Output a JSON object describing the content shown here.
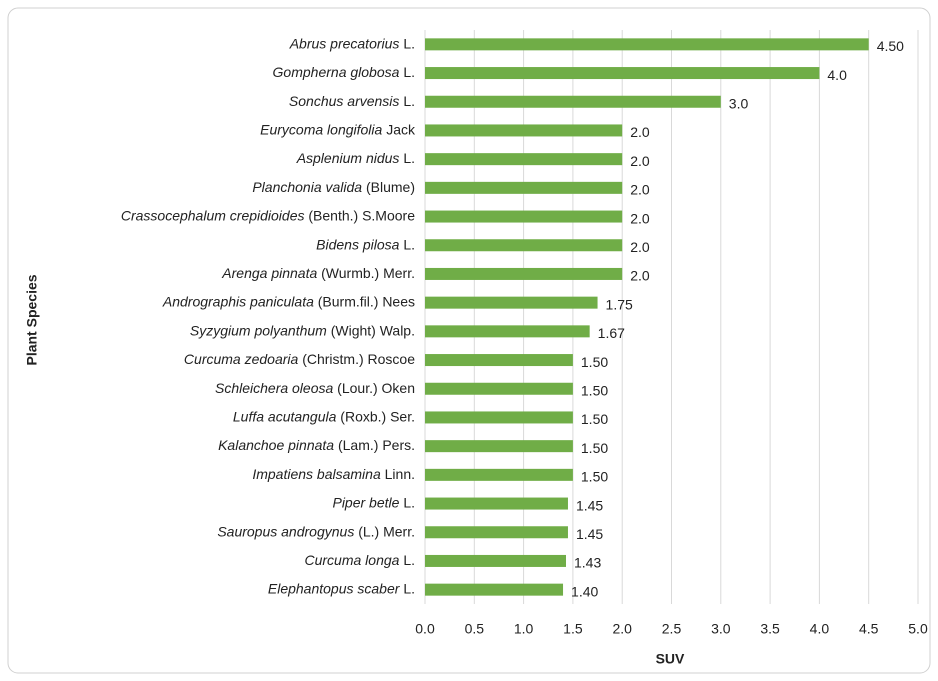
{
  "chart_data": {
    "type": "barh",
    "x_label": "SUV",
    "y_label": "Plant Species",
    "categories": [
      {
        "species": "Abrus precatorius",
        "authority": "L."
      },
      {
        "species": "Gompherna globosa",
        "authority": "L."
      },
      {
        "species": "Sonchus arvensis",
        "authority": "L."
      },
      {
        "species": "Eurycoma longifolia",
        "authority": "Jack"
      },
      {
        "species": "Asplenium nidus",
        "authority": "L."
      },
      {
        "species": "Planchonia valida",
        "authority": "(Blume)"
      },
      {
        "species": "Crassocephalum crepidioides",
        "authority": "(Benth.) S.Moore"
      },
      {
        "species": "Bidens pilosa",
        "authority": "L."
      },
      {
        "species": "Arenga pinnata",
        "authority": "(Wurmb.) Merr."
      },
      {
        "species": "Andrographis paniculata",
        "authority": "(Burm.fil.) Nees"
      },
      {
        "species": "Syzygium polyanthum",
        "authority": "(Wight) Walp."
      },
      {
        "species": "Curcuma zedoaria",
        "authority": "(Christm.) Roscoe"
      },
      {
        "species": "Schleichera oleosa",
        "authority": "(Lour.) Oken"
      },
      {
        "species": "Luffa acutangula",
        "authority": "(Roxb.) Ser."
      },
      {
        "species": "Kalanchoe pinnata",
        "authority": "(Lam.) Pers."
      },
      {
        "species": "Impatiens balsamina",
        "authority": "Linn."
      },
      {
        "species": "Piper betle",
        "authority": "L."
      },
      {
        "species": "Sauropus androgynus",
        "authority": "(L.) Merr."
      },
      {
        "species": "Curcuma longa",
        "authority": "L."
      },
      {
        "species": "Elephantopus scaber",
        "authority": "L."
      }
    ],
    "values": [
      4.5,
      4,
      3,
      2,
      2,
      2,
      2,
      2,
      2,
      1.75,
      1.67,
      1.5,
      1.5,
      1.5,
      1.5,
      1.5,
      1.45,
      1.45,
      1.43,
      1.4
    ],
    "value_labels": [
      "4.50",
      "4.0",
      "3.0",
      "2.0",
      "2.0",
      "2.0",
      "2.0",
      "2.0",
      "2.0",
      "1.75",
      "1.67",
      "1.50",
      "1.50",
      "1.50",
      "1.50",
      "1.50",
      "1.45",
      "1.45",
      "1.43",
      "1.40"
    ],
    "color": "#70ad47",
    "xlim": [
      0,
      5
    ],
    "xticks": [
      {
        "value": 0,
        "label": "0.0"
      },
      0.5,
      {
        "value": 1,
        "label": "1.0"
      },
      1.5,
      {
        "value": 2,
        "label": "2.0"
      },
      2.5,
      {
        "value": 3,
        "label": "3.0"
      },
      3.5,
      {
        "value": 4,
        "label": "4.0"
      },
      4.5,
      {
        "value": 5,
        "label": "5.0"
      }
    ],
    "grid": true
  }
}
